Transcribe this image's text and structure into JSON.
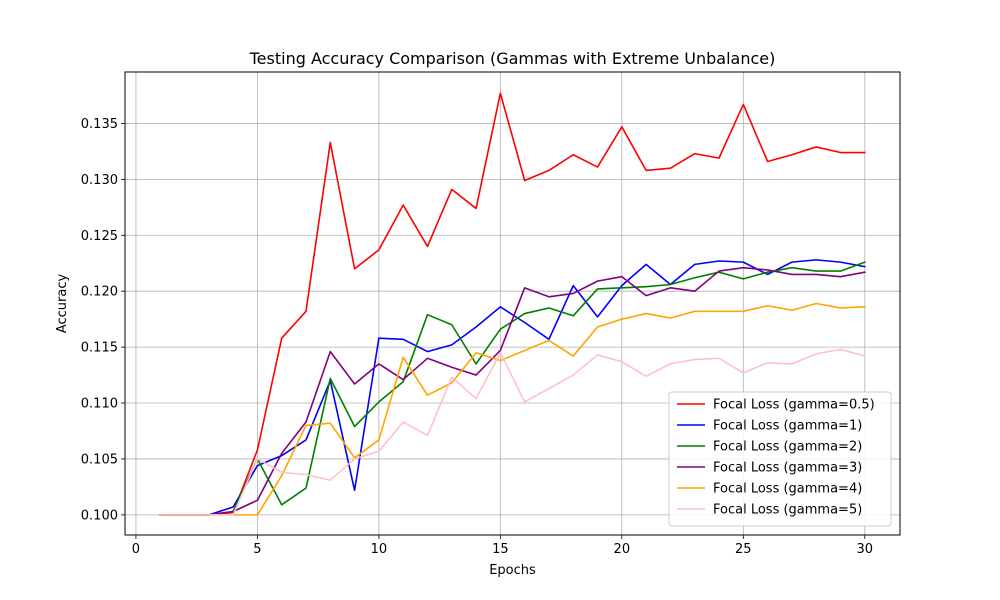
{
  "chart_data": {
    "type": "line",
    "title": "Testing Accuracy Comparison (Gammas with Extreme Unbalance)",
    "xlabel": "Epochs",
    "ylabel": "Accuracy",
    "xlim": [
      -0.45,
      31.45
    ],
    "ylim": [
      0.0982,
      0.1396
    ],
    "xticks": [
      0,
      5,
      10,
      15,
      20,
      25,
      30
    ],
    "xtick_labels": [
      "0",
      "5",
      "10",
      "15",
      "20",
      "25",
      "30"
    ],
    "yticks": [
      0.1,
      0.105,
      0.11,
      0.115,
      0.12,
      0.125,
      0.13,
      0.135
    ],
    "ytick_labels": [
      "0.100",
      "0.105",
      "0.110",
      "0.115",
      "0.120",
      "0.125",
      "0.130",
      "0.135"
    ],
    "grid": true,
    "legend_position": "bottom-right",
    "x": [
      1,
      2,
      3,
      4,
      5,
      6,
      7,
      8,
      9,
      10,
      11,
      12,
      13,
      14,
      15,
      16,
      17,
      18,
      19,
      20,
      21,
      22,
      23,
      24,
      25,
      26,
      27,
      28,
      29,
      30
    ],
    "series": [
      {
        "name": "Focal Loss (gamma=0.5)",
        "color": "#ff0000",
        "values": [
          0.1,
          0.1,
          0.1,
          0.1002,
          0.1058,
          0.1158,
          0.1182,
          0.1333,
          0.122,
          0.1237,
          0.1277,
          0.124,
          0.1291,
          0.1274,
          0.1377,
          0.1299,
          0.1308,
          0.1322,
          0.1311,
          0.1347,
          0.1308,
          0.131,
          0.1323,
          0.1319,
          0.1367,
          0.1316,
          0.1322,
          0.1329,
          0.1324,
          0.1324
        ]
      },
      {
        "name": "Focal Loss (gamma=1)",
        "color": "#0000ff",
        "values": [
          0.1,
          0.1,
          0.1,
          0.1007,
          0.1044,
          0.1053,
          0.1067,
          0.112,
          0.1022,
          0.1158,
          0.1157,
          0.1146,
          0.1152,
          0.1168,
          0.1186,
          0.1172,
          0.1157,
          0.1205,
          0.1177,
          0.1205,
          0.1224,
          0.1206,
          0.1224,
          0.1227,
          0.1226,
          0.1215,
          0.1226,
          0.1228,
          0.1226,
          0.1222
        ]
      },
      {
        "name": "Focal Loss (gamma=2)",
        "color": "#008000",
        "values": [
          0.1,
          0.1,
          0.1,
          0.1003,
          0.105,
          0.1009,
          0.1024,
          0.1122,
          0.1079,
          0.1101,
          0.1119,
          0.1179,
          0.117,
          0.1135,
          0.1166,
          0.118,
          0.1185,
          0.1178,
          0.1202,
          0.1203,
          0.1204,
          0.1206,
          0.1212,
          0.1217,
          0.1211,
          0.1217,
          0.1221,
          0.1218,
          0.1218,
          0.1226
        ]
      },
      {
        "name": "Focal Loss (gamma=3)",
        "color": "#800080",
        "values": [
          0.1,
          0.1,
          0.1,
          0.1003,
          0.1013,
          0.1055,
          0.1083,
          0.1146,
          0.1117,
          0.1135,
          0.1121,
          0.114,
          0.1132,
          0.1125,
          0.1147,
          0.1203,
          0.1195,
          0.1198,
          0.1209,
          0.1213,
          0.1196,
          0.1203,
          0.12,
          0.1218,
          0.1221,
          0.1219,
          0.1215,
          0.1215,
          0.1213,
          0.1217
        ]
      },
      {
        "name": "Focal Loss (gamma=4)",
        "color": "#ffa500",
        "values": [
          0.1,
          0.1,
          0.1,
          0.1,
          0.1,
          0.1035,
          0.108,
          0.1082,
          0.1051,
          0.1067,
          0.1141,
          0.1107,
          0.1118,
          0.1145,
          0.1138,
          0.1147,
          0.1156,
          0.1142,
          0.1168,
          0.1175,
          0.118,
          0.1176,
          0.1182,
          0.1182,
          0.1182,
          0.1187,
          0.1183,
          0.1189,
          0.1185,
          0.1186
        ]
      },
      {
        "name": "Focal Loss (gamma=5)",
        "color": "#ffc0cb",
        "values": [
          0.1,
          0.1,
          0.1,
          0.1,
          0.105,
          0.1038,
          0.1036,
          0.1031,
          0.105,
          0.1057,
          0.1083,
          0.1071,
          0.1123,
          0.1104,
          0.1145,
          0.1101,
          0.1113,
          0.1125,
          0.1143,
          0.1137,
          0.1124,
          0.1135,
          0.1139,
          0.114,
          0.1127,
          0.1136,
          0.1135,
          0.1144,
          0.1148,
          0.1142
        ]
      }
    ]
  }
}
